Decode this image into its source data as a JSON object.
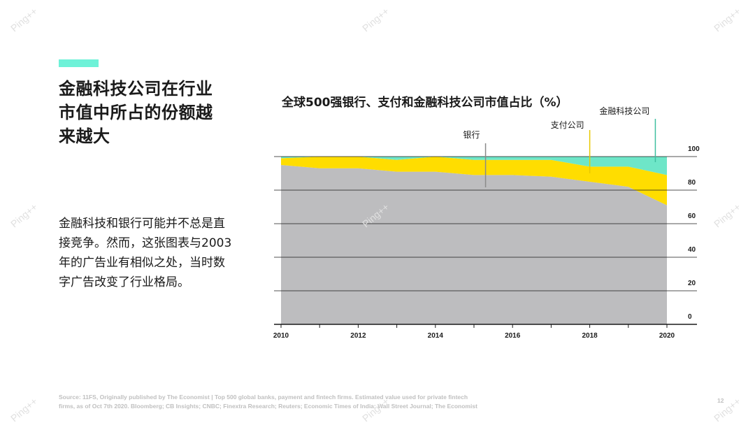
{
  "headline": "金融科技公司在行业市值中所占的份额越来越大",
  "body_text": "金融科技和银行可能并不总是直接竞争。然而，这张图表与2003年的广告业有相似之处，当时数字广告改变了行业格局。",
  "source_line1": "Source: 11FS, Originally published by The Economist | Top 500 global banks, payment and fintech firms. Estimated value used for private fintech",
  "source_line2": "firms, as of Oct 7th 2020. Bloomberg; CB Insights; CNBC; Finextra Research; Reuters; Economic Times of India; Wall Street Journal; The Economist",
  "page_number": "12",
  "watermark_text": "Ping++",
  "colors": {
    "accent": "#6ef2d8",
    "bank": "#bdbdbf",
    "payment": "#ffdd00",
    "fintech": "#6ee6c8"
  },
  "chart_data": {
    "type": "area",
    "title": "全球500强银行、支付和金融科技公司市值占比（%）",
    "x": [
      2010,
      2011,
      2012,
      2013,
      2014,
      2015,
      2016,
      2017,
      2018,
      2019,
      2020
    ],
    "x_ticks": [
      "2010",
      "2012",
      "2014",
      "2016",
      "2018",
      "2020"
    ],
    "y_ticks": [
      "0",
      "20",
      "40",
      "60",
      "80",
      "100"
    ],
    "ylim": [
      0,
      100
    ],
    "stacked": true,
    "series": [
      {
        "name": "银行",
        "values": [
          95,
          93,
          93,
          91,
          91,
          89,
          89,
          88,
          85,
          82,
          71
        ]
      },
      {
        "name": "支付公司",
        "values": [
          4,
          7,
          7,
          7,
          9,
          9,
          9,
          10,
          9,
          12,
          18
        ]
      },
      {
        "name": "金融科技公司",
        "values": [
          1,
          0,
          0,
          2,
          0,
          2,
          2,
          2,
          6,
          6,
          11
        ]
      }
    ],
    "annotations": [
      {
        "label": "银行",
        "x": 2015.3
      },
      {
        "label": "支付公司",
        "x": 2018.0
      },
      {
        "label": "金融科技公司",
        "x": 2019.7
      }
    ],
    "y_axis_position": "right",
    "grid": true
  }
}
